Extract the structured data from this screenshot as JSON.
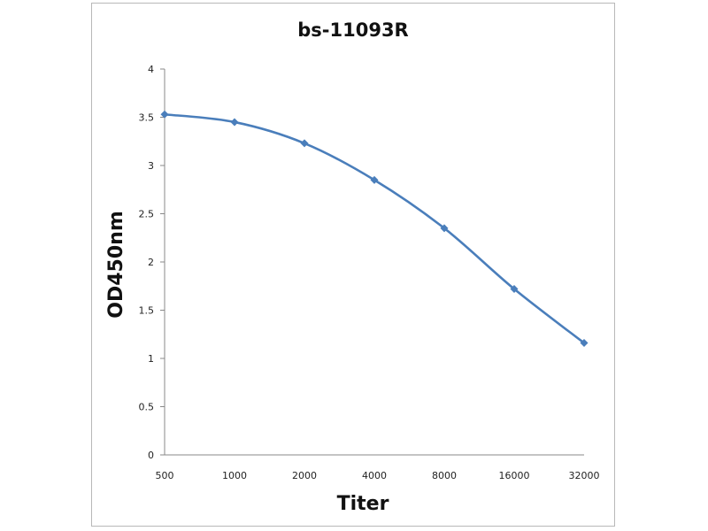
{
  "chart_data": {
    "type": "line",
    "title": "bs-11093R",
    "xlabel": "Titer",
    "ylabel": "OD450nm",
    "categories": [
      "500",
      "1000",
      "2000",
      "4000",
      "8000",
      "16000",
      "32000"
    ],
    "series": [
      {
        "values": [
          3.53,
          3.45,
          3.23,
          2.85,
          2.35,
          1.72,
          1.16
        ]
      }
    ],
    "ylim": [
      0,
      4
    ],
    "yticks": [
      0,
      0.5,
      1,
      1.5,
      2,
      2.5,
      3,
      3.5,
      4
    ],
    "line_color": "#4a7ebb",
    "marker": "diamond",
    "smooth": true,
    "grid": false,
    "legend": "none"
  }
}
